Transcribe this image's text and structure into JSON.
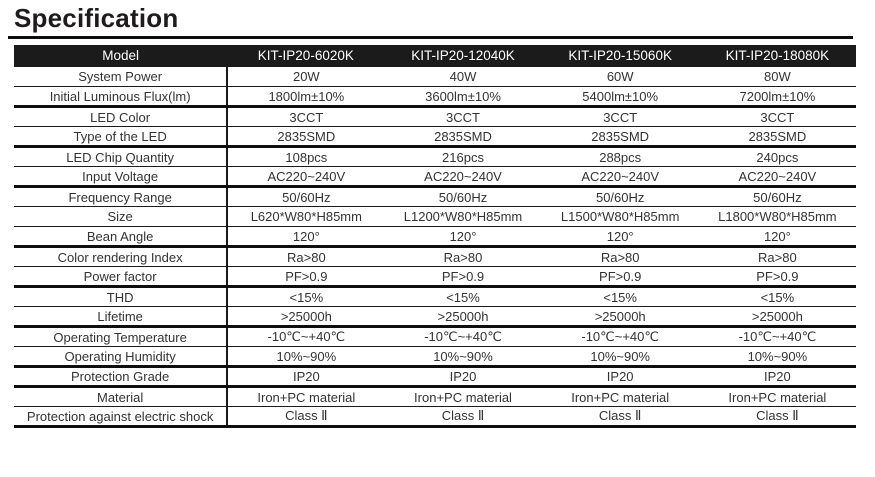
{
  "page": {
    "title": "Specification"
  },
  "colors": {
    "header_bg": "#1b1b1b",
    "header_text": "#ffffff",
    "body_text": "#333333",
    "line": "#1a1a1a",
    "page_bg": "#ffffff"
  },
  "table": {
    "header": {
      "model_label": "Model",
      "columns": [
        "KIT-IP20-6020K",
        "KIT-IP20-12040K",
        "KIT-IP20-15060K",
        "KIT-IP20-18080K"
      ]
    },
    "rows": [
      {
        "label": "System Power",
        "values": [
          "20W",
          "40W",
          "60W",
          "80W"
        ]
      },
      {
        "label": "Initial Luminous Flux(lm)",
        "values": [
          "1800lm±10%",
          "3600lm±10%",
          "5400lm±10%",
          "7200lm±10%"
        ]
      },
      {
        "label": "LED Color",
        "values": [
          "3CCT",
          "3CCT",
          "3CCT",
          "3CCT"
        ]
      },
      {
        "label": "Type of the LED",
        "values": [
          "2835SMD",
          "2835SMD",
          "2835SMD",
          "2835SMD"
        ]
      },
      {
        "label": "LED Chip Quantity",
        "values": [
          "108pcs",
          "216pcs",
          "288pcs",
          "240pcs"
        ]
      },
      {
        "label": "Input Voltage",
        "values": [
          "AC220~240V",
          "AC220~240V",
          "AC220~240V",
          "AC220~240V"
        ]
      },
      {
        "label": "Frequency Range",
        "values": [
          "50/60Hz",
          "50/60Hz",
          "50/60Hz",
          "50/60Hz"
        ]
      },
      {
        "label": "Size",
        "values": [
          "L620*W80*H85mm",
          "L1200*W80*H85mm",
          "L1500*W80*H85mm",
          "L1800*W80*H85mm"
        ]
      },
      {
        "label": "Bean Angle",
        "values": [
          "120°",
          "120°",
          "120°",
          "120°"
        ]
      },
      {
        "label": "Color rendering Index",
        "values": [
          "Ra>80",
          "Ra>80",
          "Ra>80",
          "Ra>80"
        ]
      },
      {
        "label": "Power factor",
        "values": [
          "PF>0.9",
          "PF>0.9",
          "PF>0.9",
          "PF>0.9"
        ]
      },
      {
        "label": "THD",
        "values": [
          "<15%",
          "<15%",
          "<15%",
          "<15%"
        ]
      },
      {
        "label": "Lifetime",
        "values": [
          ">25000h",
          ">25000h",
          ">25000h",
          ">25000h"
        ]
      },
      {
        "label": "Operating Temperature",
        "values": [
          "-10℃~+40℃",
          "-10℃~+40℃",
          "-10℃~+40℃",
          "-10℃~+40℃"
        ]
      },
      {
        "label": "Operating Humidity",
        "values": [
          "10%~90%",
          "10%~90%",
          "10%~90%",
          "10%~90%"
        ]
      },
      {
        "label": "Protection Grade",
        "values": [
          "IP20",
          "IP20",
          "IP20",
          "IP20"
        ]
      },
      {
        "label": "Material",
        "values": [
          "Iron+PC material",
          "Iron+PC material",
          "Iron+PC material",
          "Iron+PC material"
        ]
      },
      {
        "label": "Protection against electric shock",
        "values": [
          "Class Ⅱ",
          "Class Ⅱ",
          "Class Ⅱ",
          "Class Ⅱ"
        ]
      }
    ]
  }
}
